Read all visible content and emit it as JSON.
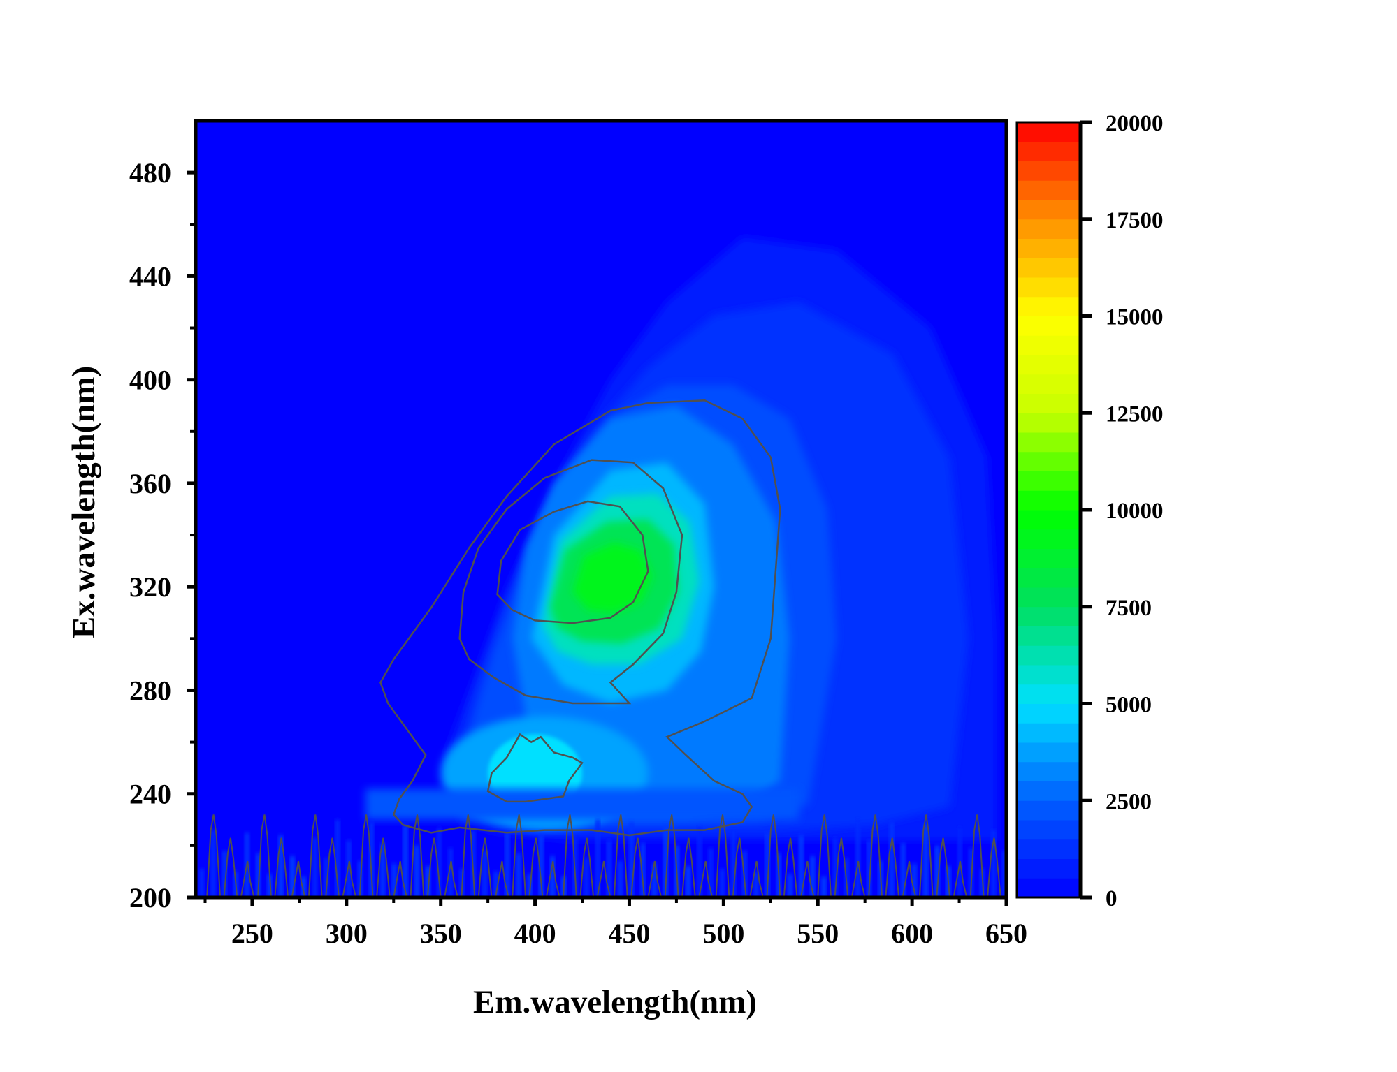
{
  "chart_data": {
    "type": "heatmap",
    "subtype": "filled-contour",
    "xlabel": "Em.wavelength(nm)",
    "ylabel": "Ex.wavelength(nm)",
    "xlim": [
      220,
      650
    ],
    "ylim": [
      200,
      500
    ],
    "xticks": [
      250,
      300,
      350,
      400,
      450,
      500,
      550,
      600,
      650
    ],
    "yticks": [
      200,
      240,
      280,
      320,
      360,
      400,
      440,
      480
    ],
    "colorbar": {
      "range": [
        0,
        20000
      ],
      "ticks": [
        0,
        2500,
        5000,
        7500,
        10000,
        12500,
        15000,
        17500,
        20000
      ],
      "colors": [
        "#0000ff",
        "#0060ff",
        "#00e0ff",
        "#00e060",
        "#00ff00",
        "#c8ff00",
        "#ffff00",
        "#ff9000",
        "#ff0000"
      ]
    },
    "intensity_peaks": [
      {
        "em": 415,
        "ex": 325,
        "value": 9500
      },
      {
        "em": 400,
        "ex": 245,
        "value": 5200
      }
    ],
    "contour_levels": [
      2500,
      5000,
      7500
    ],
    "contour_color": "#505050",
    "grid": false
  }
}
